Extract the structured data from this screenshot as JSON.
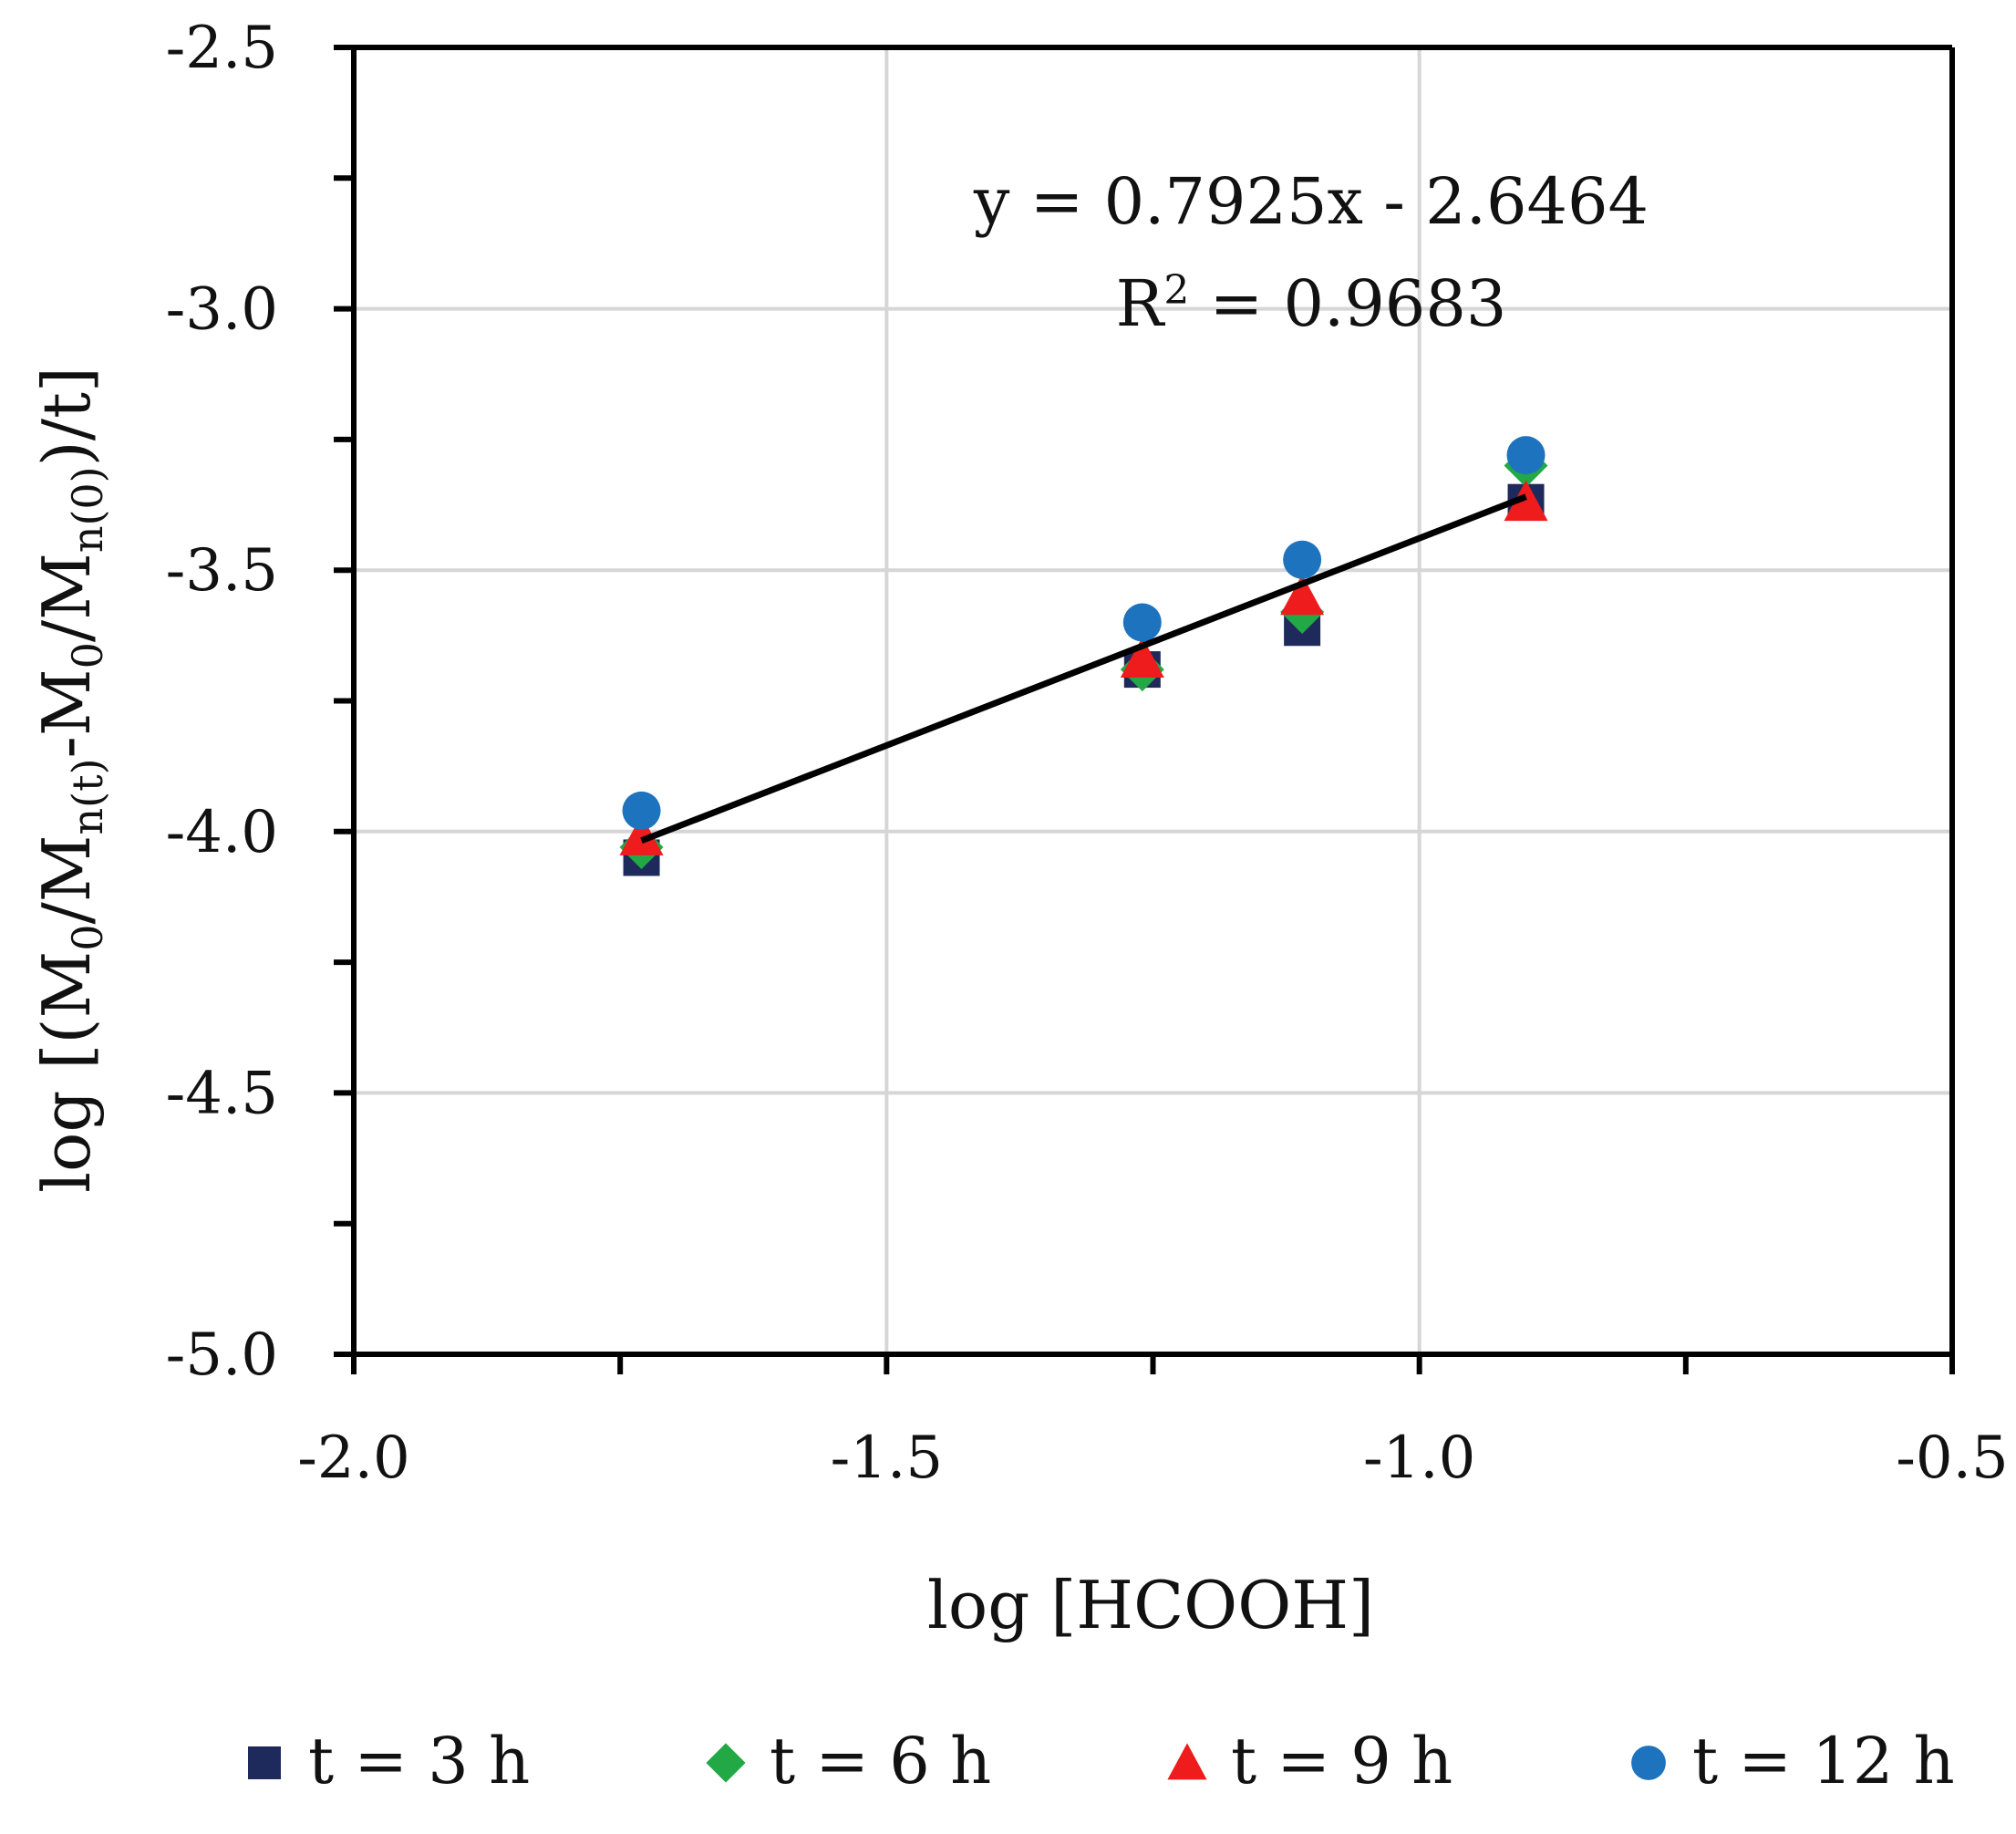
{
  "chart_data": {
    "type": "scatter",
    "title": "",
    "xlabel": "log [HCOOH]",
    "ylabel_parts": {
      "prefix": "log [(M",
      "sub1": "0",
      "mid1": "/M",
      "sub2": "n(t)",
      "mid2": "-M",
      "sub3": "0",
      "mid3": "/M",
      "sub4": "n(0)",
      "suffix": ")/t]"
    },
    "xlim": [
      -2.0,
      -0.5
    ],
    "ylim": [
      -5.0,
      -2.5
    ],
    "x_ticks": [
      -2.0,
      -1.75,
      -1.5,
      -1.25,
      -1.0,
      -0.75,
      -0.5
    ],
    "x_tick_labels": [
      "-2.0",
      "-1.5",
      "-1.0",
      "-0.5"
    ],
    "x_tick_label_values": [
      -2.0,
      -1.5,
      -1.0,
      -0.5
    ],
    "y_ticks": [
      -5.0,
      -4.75,
      -4.5,
      -4.25,
      -4.0,
      -3.75,
      -3.5,
      -3.25,
      -3.0,
      -2.75,
      -2.5
    ],
    "y_tick_labels": [
      "-5.0",
      "-4.5",
      "-4.0",
      "-3.5",
      "-3.0",
      "-2.5"
    ],
    "y_tick_label_values": [
      -5.0,
      -4.5,
      -4.0,
      -3.5,
      -3.0,
      -2.5
    ],
    "grid": true,
    "series": [
      {
        "name": "t = 3 h",
        "marker": "square",
        "color": "#1f2a5c",
        "x": [
          -1.73,
          -1.26,
          -1.11,
          -0.9
        ],
        "y": [
          -4.05,
          -3.69,
          -3.61,
          -3.37
        ]
      },
      {
        "name": "t = 6 h",
        "marker": "diamond",
        "color": "#22a845",
        "x": [
          -1.73,
          -1.26,
          -1.11,
          -0.9
        ],
        "y": [
          -4.03,
          -3.69,
          -3.58,
          -3.3
        ]
      },
      {
        "name": "t = 9 h",
        "marker": "triangle",
        "color": "#ee1c1c",
        "x": [
          -1.73,
          -1.26,
          -1.11,
          -0.9
        ],
        "y": [
          -4.01,
          -3.67,
          -3.55,
          -3.37
        ]
      },
      {
        "name": "t = 12 h",
        "marker": "circle",
        "color": "#1e73be",
        "x": [
          -1.73,
          -1.26,
          -1.11,
          -0.9
        ],
        "y": [
          -3.96,
          -3.6,
          -3.48,
          -3.28
        ]
      }
    ],
    "trendline": {
      "slope": 0.7925,
      "intercept": -2.6464,
      "x_range": [
        -1.73,
        -0.9
      ],
      "color": "#000000",
      "equation": "y = 0.7925x - 2.6464",
      "r2_prefix": "R",
      "r2_sup": "2",
      "r2_value": " = 0.9683"
    },
    "legend_position": "bottom"
  }
}
